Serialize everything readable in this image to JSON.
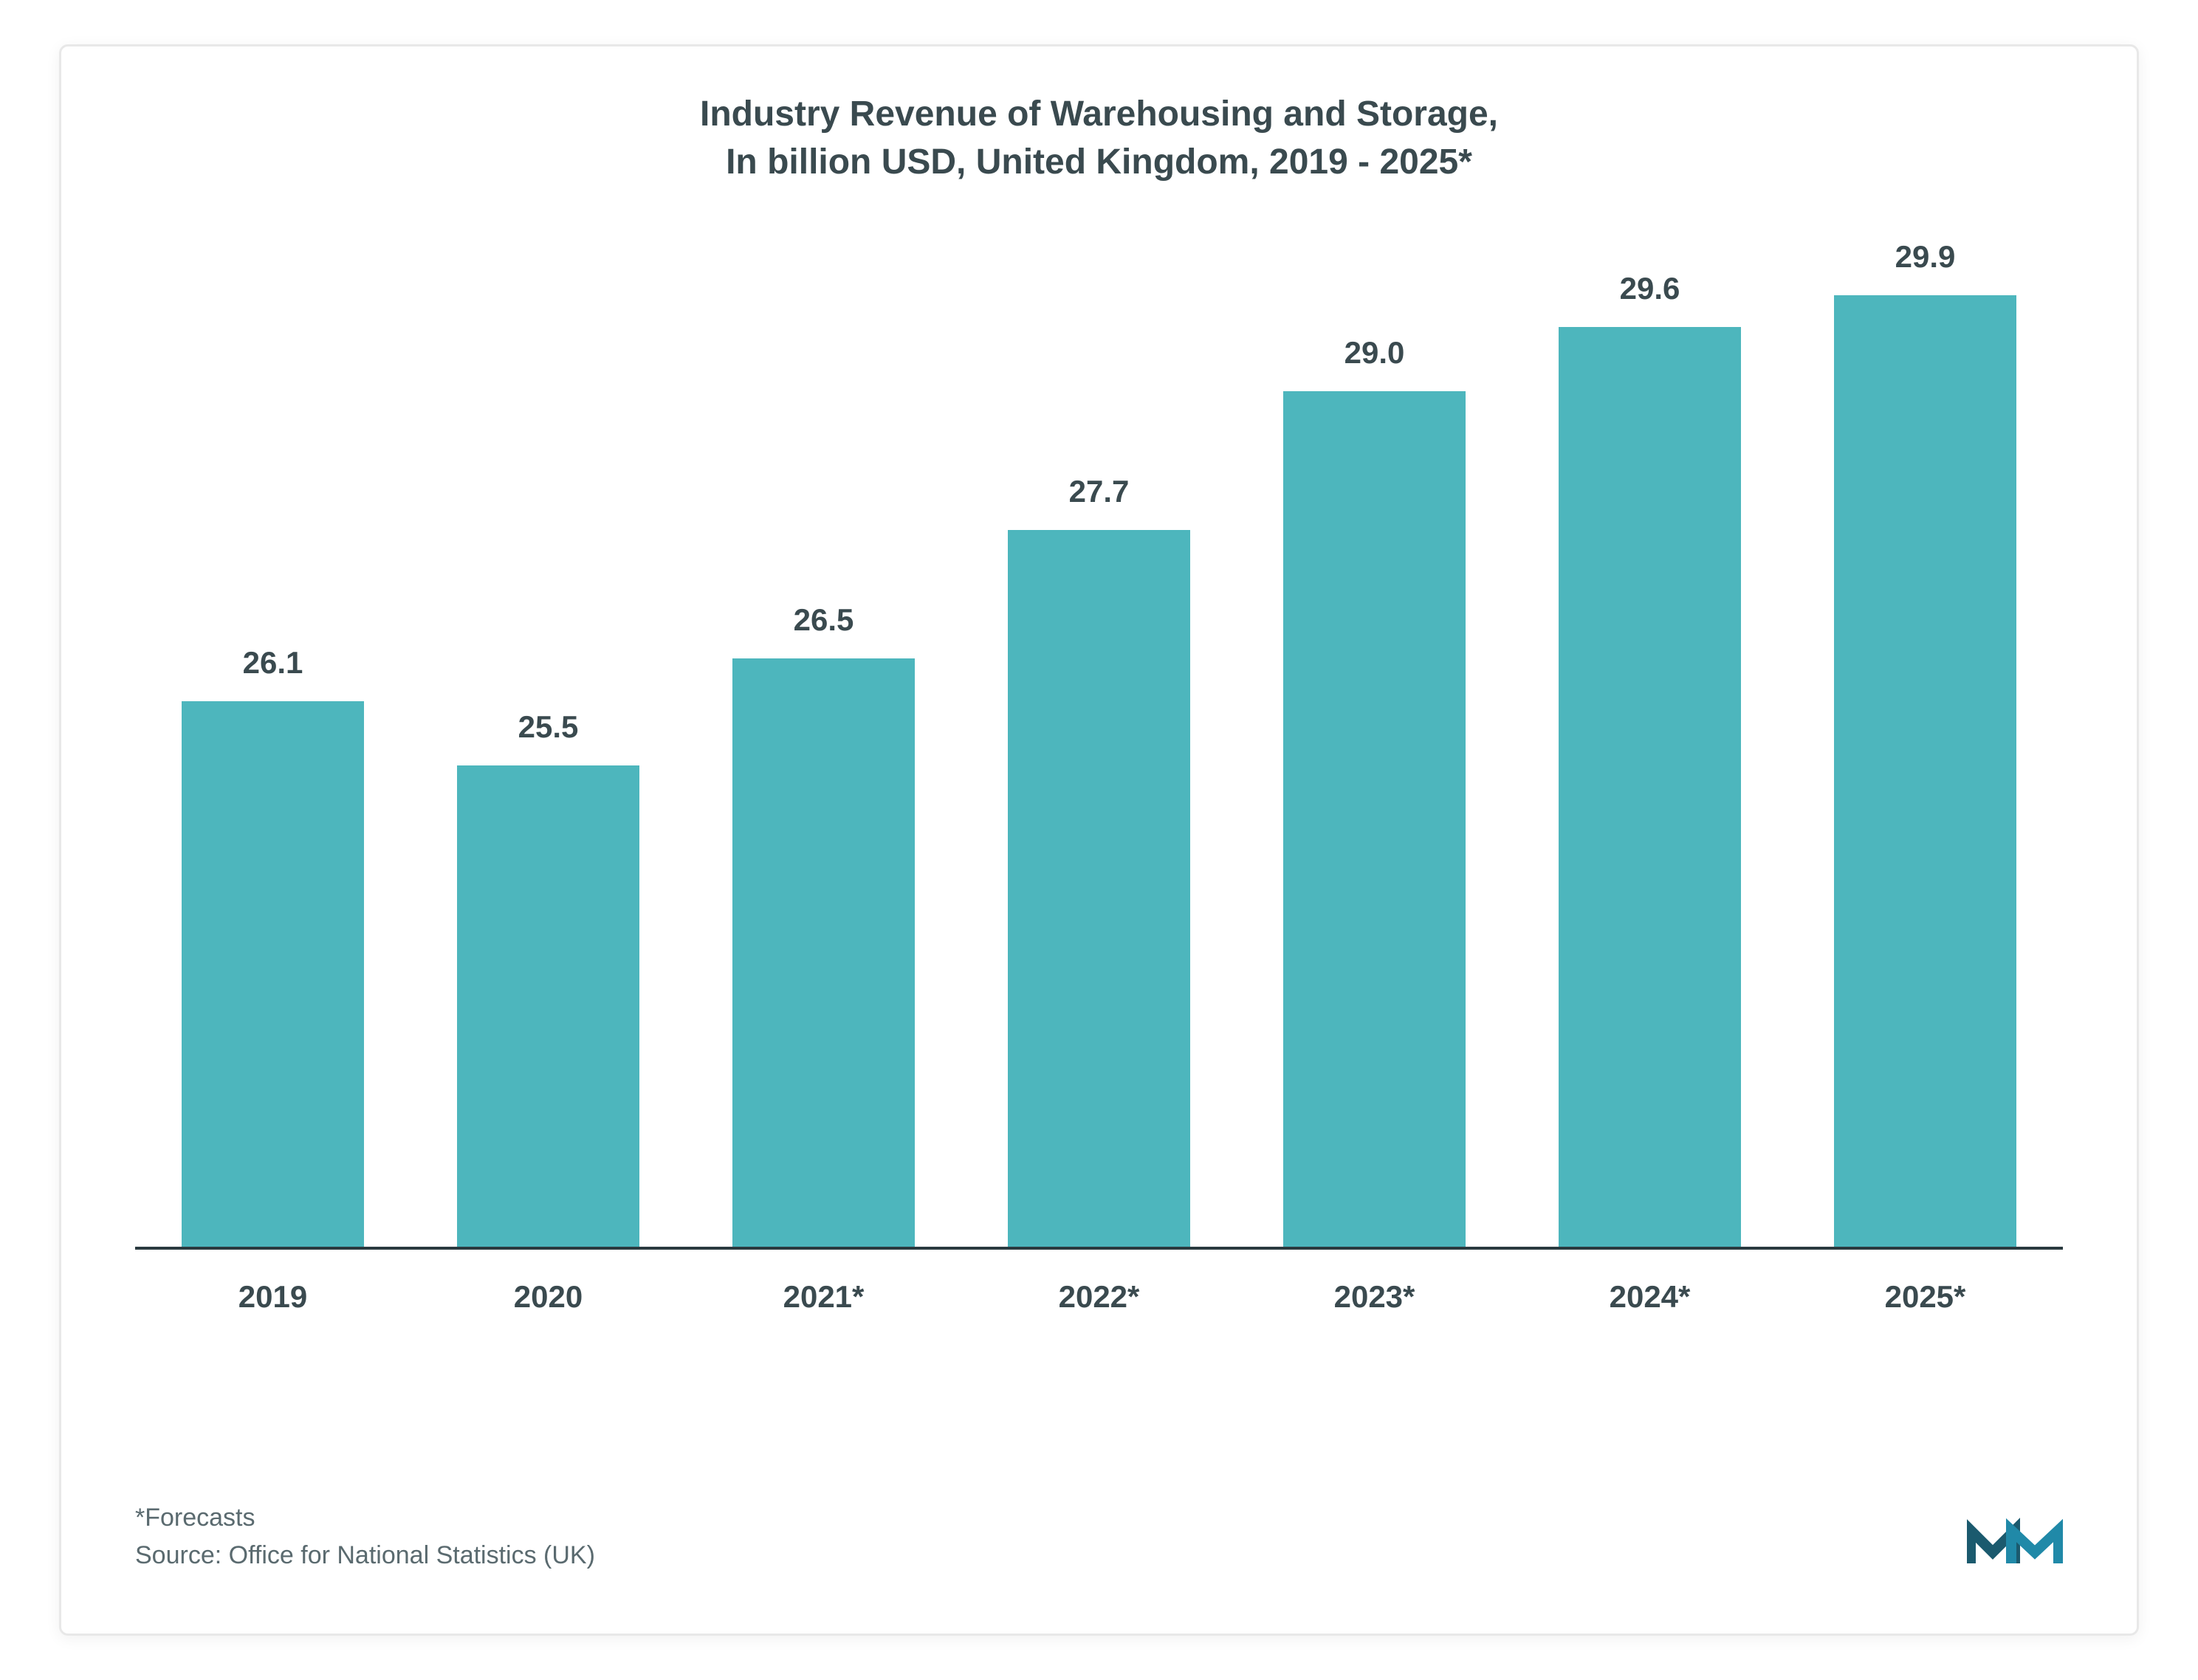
{
  "chart": {
    "type": "bar",
    "title_line1": "Industry Revenue of Warehousing and Storage,",
    "title_line2": "In billion USD, United Kingdom, 2019 - 2025*",
    "title_fontsize": 48,
    "title_color": "#3a4a4f",
    "categories": [
      "2019",
      "2020",
      "2021*",
      "2022*",
      "2023*",
      "2024*",
      "2025*"
    ],
    "values": [
      26.1,
      25.5,
      26.5,
      27.7,
      29.0,
      29.6,
      29.9
    ],
    "value_labels": [
      "26.1",
      "25.5",
      "26.5",
      "27.7",
      "29.0",
      "29.6",
      "29.9"
    ],
    "bar_color": "#4db6bd",
    "bar_width_pct": 66,
    "baseline_value": 21.0,
    "ylim_max": 30.5,
    "axis_line_color": "#2a3a3f",
    "label_fontsize": 42,
    "label_color": "#3a4a4f",
    "background_color": "#ffffff",
    "border_color": "#e8e8e8"
  },
  "footer": {
    "forecasts_note": "*Forecasts",
    "source_text": "Source: Office for National Statistics (UK)",
    "fontsize": 34,
    "color": "#5a6a6f"
  },
  "logo": {
    "name": "mordor-intelligence-logo",
    "color1": "#1b5a6e",
    "color2": "#2089a8",
    "width": 130,
    "height": 80
  }
}
